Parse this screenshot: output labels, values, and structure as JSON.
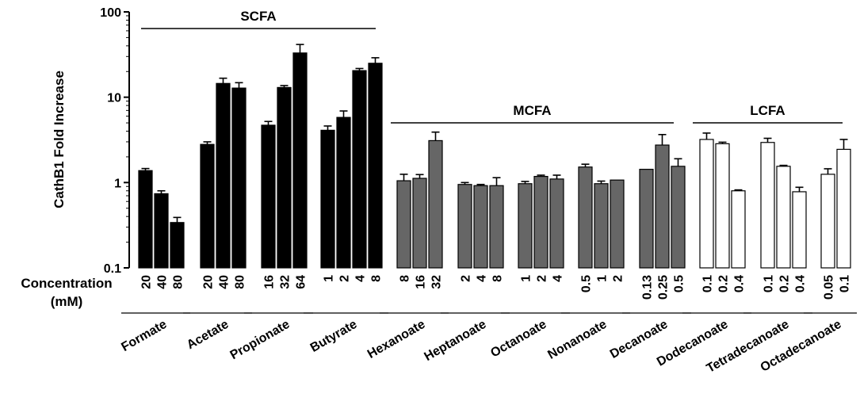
{
  "chart_data": {
    "type": "bar",
    "scale": "log",
    "ylim": [
      0.1,
      100
    ],
    "ylabel": "CathB1 Fold Increase",
    "yticks": [
      "100",
      "10",
      "1",
      "0.1"
    ],
    "concentration_label": [
      "Concentration",
      "(mM)"
    ],
    "groups": [
      {
        "name": "Formate",
        "class": "SCFA",
        "concentrations": [
          "20",
          "40",
          "80"
        ],
        "values": [
          1.38,
          0.74,
          0.34
        ],
        "errors": [
          0.08,
          0.06,
          0.05
        ]
      },
      {
        "name": "Acetate",
        "class": "SCFA",
        "concentrations": [
          "20",
          "40",
          "80"
        ],
        "values": [
          2.8,
          14.5,
          12.8
        ],
        "errors": [
          0.2,
          2.2,
          2.0
        ]
      },
      {
        "name": "Propionate",
        "class": "SCFA",
        "concentrations": [
          "16",
          "32",
          "64"
        ],
        "values": [
          4.7,
          13.0,
          33.0
        ],
        "errors": [
          0.5,
          0.7,
          8.5
        ]
      },
      {
        "name": "Butyrate",
        "class": "SCFA",
        "concentrations": [
          "1",
          "2",
          "4",
          "8"
        ],
        "values": [
          4.1,
          5.8,
          20.5,
          25.0
        ],
        "errors": [
          0.5,
          1.1,
          1.2,
          4.0
        ]
      },
      {
        "name": "Hexanoate",
        "class": "MCFA",
        "concentrations": [
          "8",
          "16",
          "32"
        ],
        "values": [
          1.05,
          1.12,
          3.1
        ],
        "errors": [
          0.2,
          0.12,
          0.8
        ]
      },
      {
        "name": "Heptanoate",
        "class": "MCFA",
        "concentrations": [
          "2",
          "4",
          "8"
        ],
        "values": [
          0.95,
          0.92,
          0.92
        ],
        "errors": [
          0.05,
          0.03,
          0.22
        ]
      },
      {
        "name": "Octanoate",
        "class": "MCFA",
        "concentrations": [
          "1",
          "2",
          "4"
        ],
        "values": [
          0.97,
          1.18,
          1.1
        ],
        "errors": [
          0.06,
          0.04,
          0.12
        ]
      },
      {
        "name": "Nonanoate",
        "class": "MCFA",
        "concentrations": [
          "0.5",
          "1",
          "2"
        ],
        "values": [
          1.52,
          0.97,
          1.07
        ],
        "errors": [
          0.12,
          0.07,
          0.0
        ]
      },
      {
        "name": "Decanoate",
        "class": "MCFA",
        "concentrations": [
          "0.13",
          "0.25",
          "0.5"
        ],
        "values": [
          1.43,
          2.75,
          1.55
        ],
        "errors": [
          0.0,
          0.9,
          0.35
        ]
      },
      {
        "name": "Dodecanoate",
        "class": "LCFA",
        "concentrations": [
          "0.1",
          "0.2",
          "0.4"
        ],
        "values": [
          3.2,
          2.85,
          0.8
        ],
        "errors": [
          0.6,
          0.12,
          0.02
        ]
      },
      {
        "name": "Tetradecanoate",
        "class": "LCFA",
        "concentrations": [
          "0.1",
          "0.2",
          "0.4"
        ],
        "values": [
          2.95,
          1.55,
          0.78
        ],
        "errors": [
          0.35,
          0.04,
          0.1
        ]
      },
      {
        "name": "Octadecanoate",
        "class": "LCFA",
        "concentrations": [
          "0.05",
          "0.1"
        ],
        "values": [
          1.25,
          2.45
        ],
        "errors": [
          0.2,
          0.75
        ]
      }
    ],
    "classes": [
      {
        "name": "SCFA",
        "fill": "#000000"
      },
      {
        "name": "MCFA",
        "fill": "#666666"
      },
      {
        "name": "LCFA",
        "fill": "#ffffff"
      }
    ]
  }
}
